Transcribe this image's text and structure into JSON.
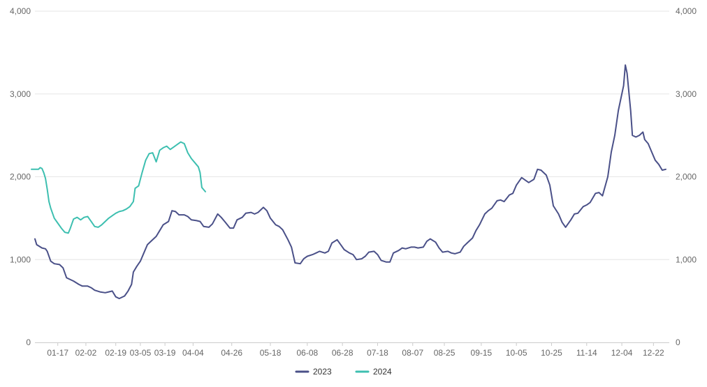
{
  "chart_data": {
    "type": "line",
    "title": "",
    "xlabel": "",
    "ylabel": "",
    "ylim": [
      0,
      4000
    ],
    "yticks": [
      0,
      1000,
      2000,
      3000,
      4000
    ],
    "ytick_labels": [
      "0",
      "1,000",
      "2,000",
      "3,000",
      "4,000"
    ],
    "y2ticks": [
      0,
      1000,
      2000,
      3000,
      4000
    ],
    "y2tick_labels": [
      "0",
      "1,000",
      "2,000",
      "3,000",
      "4,000"
    ],
    "x_date_range": [
      "01-04",
      "12-31"
    ],
    "xtick_labels": [
      "01-17",
      "02-02",
      "02-19",
      "03-05",
      "03-19",
      "04-04",
      "04-26",
      "05-18",
      "06-08",
      "06-28",
      "07-18",
      "08-07",
      "08-25",
      "09-15",
      "10-05",
      "10-25",
      "11-14",
      "12-04",
      "12-22"
    ],
    "grid": "horizontal",
    "legend_position": "bottom-center",
    "series": [
      {
        "name": "2023",
        "color": "#4a5088",
        "points": [
          [
            "01-04",
            1250
          ],
          [
            "01-05",
            1180
          ],
          [
            "01-08",
            1140
          ],
          [
            "01-10",
            1130
          ],
          [
            "01-11",
            1100
          ],
          [
            "01-13",
            980
          ],
          [
            "01-15",
            950
          ],
          [
            "01-18",
            940
          ],
          [
            "01-20",
            900
          ],
          [
            "01-22",
            780
          ],
          [
            "01-26",
            740
          ],
          [
            "01-29",
            700
          ],
          [
            "01-31",
            680
          ],
          [
            "02-03",
            680
          ],
          [
            "02-05",
            660
          ],
          [
            "02-07",
            630
          ],
          [
            "02-10",
            610
          ],
          [
            "02-13",
            600
          ],
          [
            "02-15",
            610
          ],
          [
            "02-17",
            620
          ],
          [
            "02-19",
            550
          ],
          [
            "02-21",
            530
          ],
          [
            "02-24",
            560
          ],
          [
            "02-26",
            620
          ],
          [
            "02-28",
            700
          ],
          [
            "03-01",
            850
          ],
          [
            "03-03",
            920
          ],
          [
            "03-05",
            980
          ],
          [
            "03-07",
            1080
          ],
          [
            "03-09",
            1180
          ],
          [
            "03-11",
            1220
          ],
          [
            "03-14",
            1280
          ],
          [
            "03-16",
            1350
          ],
          [
            "03-18",
            1420
          ],
          [
            "03-21",
            1460
          ],
          [
            "03-23",
            1590
          ],
          [
            "03-25",
            1580
          ],
          [
            "03-27",
            1540
          ],
          [
            "03-30",
            1540
          ],
          [
            "04-01",
            1520
          ],
          [
            "04-03",
            1480
          ],
          [
            "04-06",
            1470
          ],
          [
            "04-08",
            1460
          ],
          [
            "04-10",
            1400
          ],
          [
            "04-13",
            1390
          ],
          [
            "04-15",
            1430
          ],
          [
            "04-18",
            1550
          ],
          [
            "04-20",
            1510
          ],
          [
            "04-22",
            1460
          ],
          [
            "04-25",
            1380
          ],
          [
            "04-27",
            1380
          ],
          [
            "04-29",
            1480
          ],
          [
            "05-02",
            1510
          ],
          [
            "05-04",
            1560
          ],
          [
            "05-07",
            1570
          ],
          [
            "05-09",
            1550
          ],
          [
            "05-11",
            1570
          ],
          [
            "05-14",
            1630
          ],
          [
            "05-16",
            1590
          ],
          [
            "05-18",
            1500
          ],
          [
            "05-21",
            1420
          ],
          [
            "05-23",
            1400
          ],
          [
            "05-25",
            1360
          ],
          [
            "05-28",
            1240
          ],
          [
            "05-30",
            1150
          ],
          [
            "06-01",
            960
          ],
          [
            "06-04",
            950
          ],
          [
            "06-06",
            1010
          ],
          [
            "06-08",
            1040
          ],
          [
            "06-11",
            1060
          ],
          [
            "06-13",
            1080
          ],
          [
            "06-15",
            1100
          ],
          [
            "06-18",
            1080
          ],
          [
            "06-20",
            1100
          ],
          [
            "06-22",
            1200
          ],
          [
            "06-25",
            1240
          ],
          [
            "06-27",
            1180
          ],
          [
            "06-29",
            1120
          ],
          [
            "07-02",
            1080
          ],
          [
            "07-04",
            1060
          ],
          [
            "07-06",
            1000
          ],
          [
            "07-09",
            1010
          ],
          [
            "07-11",
            1040
          ],
          [
            "07-13",
            1090
          ],
          [
            "07-16",
            1100
          ],
          [
            "07-18",
            1060
          ],
          [
            "07-20",
            990
          ],
          [
            "07-23",
            970
          ],
          [
            "07-25",
            970
          ],
          [
            "07-27",
            1080
          ],
          [
            "07-30",
            1110
          ],
          [
            "08-01",
            1140
          ],
          [
            "08-03",
            1130
          ],
          [
            "08-06",
            1150
          ],
          [
            "08-08",
            1150
          ],
          [
            "08-10",
            1140
          ],
          [
            "08-13",
            1150
          ],
          [
            "08-15",
            1220
          ],
          [
            "08-17",
            1250
          ],
          [
            "08-20",
            1210
          ],
          [
            "08-22",
            1140
          ],
          [
            "08-24",
            1090
          ],
          [
            "08-27",
            1100
          ],
          [
            "08-29",
            1080
          ],
          [
            "08-31",
            1070
          ],
          [
            "09-03",
            1090
          ],
          [
            "09-05",
            1160
          ],
          [
            "09-07",
            1200
          ],
          [
            "09-10",
            1260
          ],
          [
            "09-12",
            1350
          ],
          [
            "09-14",
            1420
          ],
          [
            "09-17",
            1550
          ],
          [
            "09-19",
            1590
          ],
          [
            "09-21",
            1620
          ],
          [
            "09-24",
            1710
          ],
          [
            "09-26",
            1720
          ],
          [
            "09-28",
            1700
          ],
          [
            "10-01",
            1780
          ],
          [
            "10-03",
            1800
          ],
          [
            "10-05",
            1900
          ],
          [
            "10-08",
            1990
          ],
          [
            "10-10",
            1960
          ],
          [
            "10-12",
            1930
          ],
          [
            "10-15",
            1970
          ],
          [
            "10-17",
            2090
          ],
          [
            "10-19",
            2080
          ],
          [
            "10-22",
            2020
          ],
          [
            "10-24",
            1900
          ],
          [
            "10-26",
            1650
          ],
          [
            "10-29",
            1550
          ],
          [
            "10-31",
            1450
          ],
          [
            "11-02",
            1390
          ],
          [
            "11-05",
            1480
          ],
          [
            "11-07",
            1550
          ],
          [
            "11-09",
            1560
          ],
          [
            "11-12",
            1640
          ],
          [
            "11-14",
            1660
          ],
          [
            "11-16",
            1690
          ],
          [
            "11-19",
            1800
          ],
          [
            "11-21",
            1810
          ],
          [
            "11-23",
            1770
          ],
          [
            "11-26",
            2000
          ],
          [
            "11-28",
            2300
          ],
          [
            "11-30",
            2500
          ],
          [
            "12-02",
            2800
          ],
          [
            "12-05",
            3100
          ],
          [
            "12-06",
            3350
          ],
          [
            "12-07",
            3250
          ],
          [
            "12-09",
            2800
          ],
          [
            "12-10",
            2500
          ],
          [
            "12-12",
            2480
          ],
          [
            "12-14",
            2500
          ],
          [
            "12-16",
            2540
          ],
          [
            "12-17",
            2450
          ],
          [
            "12-19",
            2400
          ],
          [
            "12-21",
            2300
          ],
          [
            "12-23",
            2200
          ],
          [
            "12-25",
            2150
          ],
          [
            "12-27",
            2080
          ],
          [
            "12-29",
            2090
          ]
        ]
      },
      {
        "name": "2024",
        "color": "#3dbfb0",
        "points": [
          [
            "01-02",
            2090
          ],
          [
            "01-04",
            2090
          ],
          [
            "01-06",
            2090
          ],
          [
            "01-07",
            2110
          ],
          [
            "01-08",
            2100
          ],
          [
            "01-09",
            2050
          ],
          [
            "01-10",
            1980
          ],
          [
            "01-11",
            1850
          ],
          [
            "01-12",
            1700
          ],
          [
            "01-13",
            1620
          ],
          [
            "01-15",
            1500
          ],
          [
            "01-17",
            1440
          ],
          [
            "01-19",
            1380
          ],
          [
            "01-21",
            1330
          ],
          [
            "01-23",
            1320
          ],
          [
            "01-24",
            1370
          ],
          [
            "01-26",
            1490
          ],
          [
            "01-28",
            1510
          ],
          [
            "01-30",
            1480
          ],
          [
            "02-01",
            1510
          ],
          [
            "02-03",
            1520
          ],
          [
            "02-05",
            1460
          ],
          [
            "02-07",
            1400
          ],
          [
            "02-09",
            1390
          ],
          [
            "02-11",
            1420
          ],
          [
            "02-13",
            1460
          ],
          [
            "02-15",
            1500
          ],
          [
            "02-17",
            1530
          ],
          [
            "02-19",
            1560
          ],
          [
            "02-21",
            1580
          ],
          [
            "02-23",
            1590
          ],
          [
            "02-25",
            1610
          ],
          [
            "02-27",
            1640
          ],
          [
            "02-29",
            1700
          ],
          [
            "03-02",
            1860
          ],
          [
            "03-04",
            1890
          ],
          [
            "03-06",
            2050
          ],
          [
            "03-08",
            2200
          ],
          [
            "03-10",
            2280
          ],
          [
            "03-12",
            2290
          ],
          [
            "03-14",
            2180
          ],
          [
            "03-16",
            2320
          ],
          [
            "03-18",
            2350
          ],
          [
            "03-20",
            2370
          ],
          [
            "03-22",
            2330
          ],
          [
            "03-24",
            2360
          ],
          [
            "03-26",
            2390
          ],
          [
            "03-28",
            2420
          ],
          [
            "03-30",
            2400
          ],
          [
            "04-01",
            2290
          ],
          [
            "04-03",
            2220
          ],
          [
            "04-05",
            2170
          ],
          [
            "04-07",
            2120
          ],
          [
            "04-08",
            2050
          ],
          [
            "04-09",
            1870
          ],
          [
            "04-11",
            1820
          ]
        ]
      }
    ]
  }
}
